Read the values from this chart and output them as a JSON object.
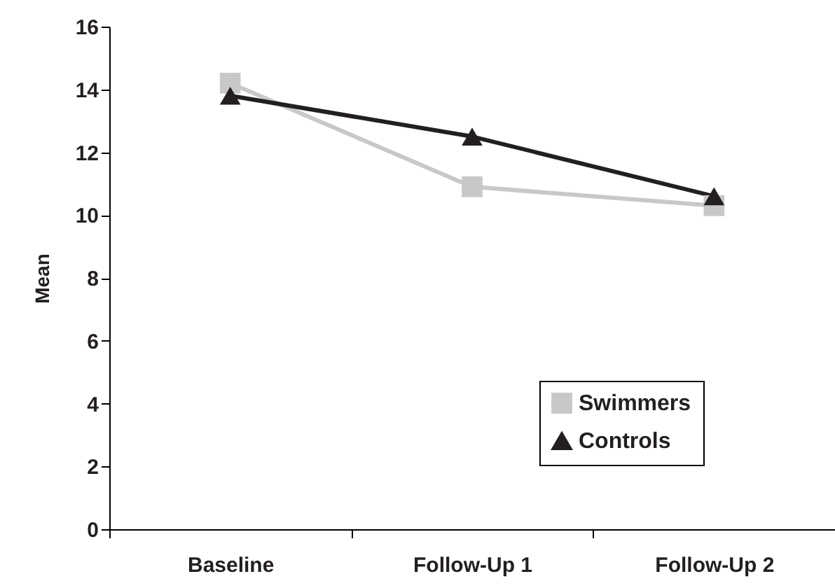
{
  "chart_data": {
    "type": "line",
    "ylabel": "Mean",
    "categories": [
      "Baseline",
      "Follow-Up 1",
      "Follow-Up 2"
    ],
    "series": [
      {
        "name": "Swimmers",
        "color": "#c8c8c8",
        "marker": "square",
        "values": [
          14.2,
          10.9,
          10.3
        ]
      },
      {
        "name": "Controls",
        "color": "#231f20",
        "marker": "triangle",
        "values": [
          13.8,
          12.5,
          10.6
        ]
      }
    ],
    "ylim": [
      0,
      16
    ],
    "yticks": [
      0,
      2,
      4,
      6,
      8,
      10,
      12,
      14,
      16
    ],
    "grid": false,
    "legend": "bottom right"
  }
}
